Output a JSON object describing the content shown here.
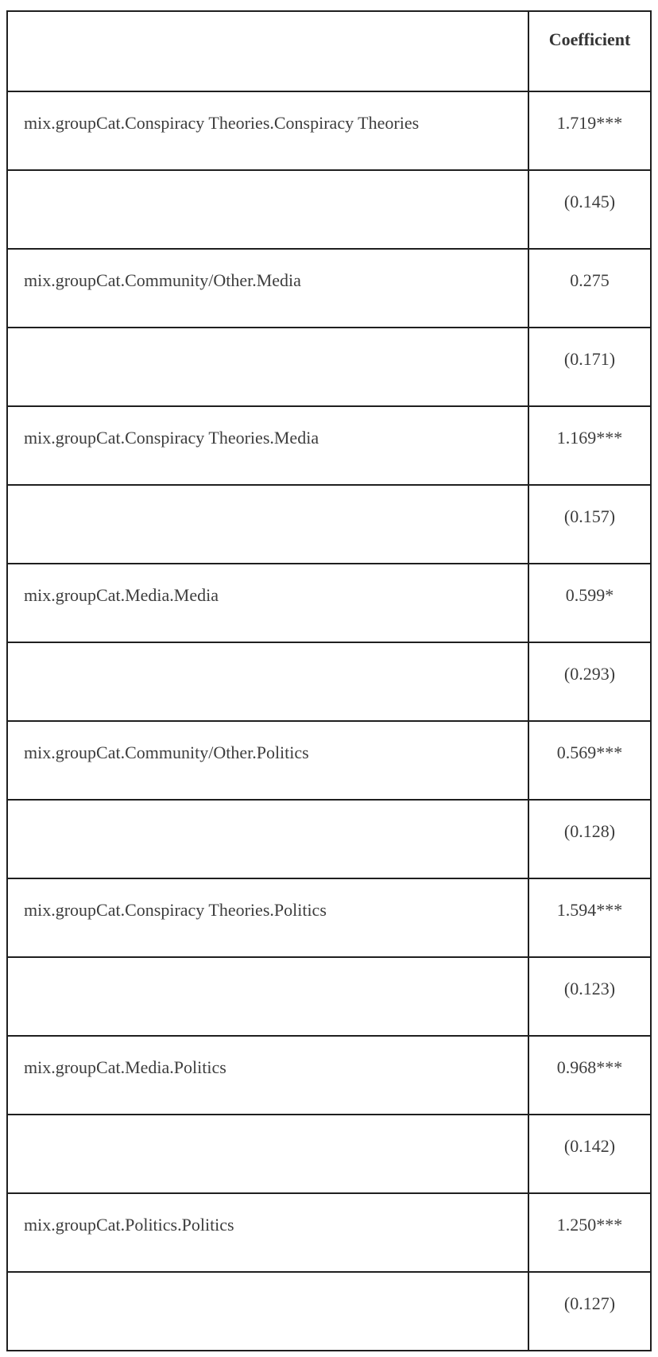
{
  "table": {
    "name": "regression-coefficients-table",
    "header": {
      "label_column": "",
      "value_column": "Coefficient"
    },
    "rows": [
      {
        "label": "mix.groupCat.Conspiracy Theories.Conspiracy Theories",
        "value": "1.719***"
      },
      {
        "label": "",
        "value": "(0.145)"
      },
      {
        "label": "mix.groupCat.Community/Other.Media",
        "value": "0.275"
      },
      {
        "label": "",
        "value": "(0.171)"
      },
      {
        "label": "mix.groupCat.Conspiracy Theories.Media",
        "value": "1.169***"
      },
      {
        "label": "",
        "value": "(0.157)"
      },
      {
        "label": "mix.groupCat.Media.Media",
        "value": "0.599*"
      },
      {
        "label": "",
        "value": "(0.293)"
      },
      {
        "label": "mix.groupCat.Community/Other.Politics",
        "value": "0.569***"
      },
      {
        "label": "",
        "value": "(0.128)"
      },
      {
        "label": "mix.groupCat.Conspiracy Theories.Politics",
        "value": "1.594***"
      },
      {
        "label": "",
        "value": "(0.123)"
      },
      {
        "label": "mix.groupCat.Media.Politics",
        "value": "0.968***"
      },
      {
        "label": "",
        "value": "(0.142)"
      },
      {
        "label": "mix.groupCat.Politics.Politics",
        "value": "1.250***"
      },
      {
        "label": "",
        "value": "(0.127)"
      }
    ],
    "colors": {
      "border": "#1f1f1f",
      "text": "#3d3d3d",
      "background": "#ffffff"
    }
  }
}
